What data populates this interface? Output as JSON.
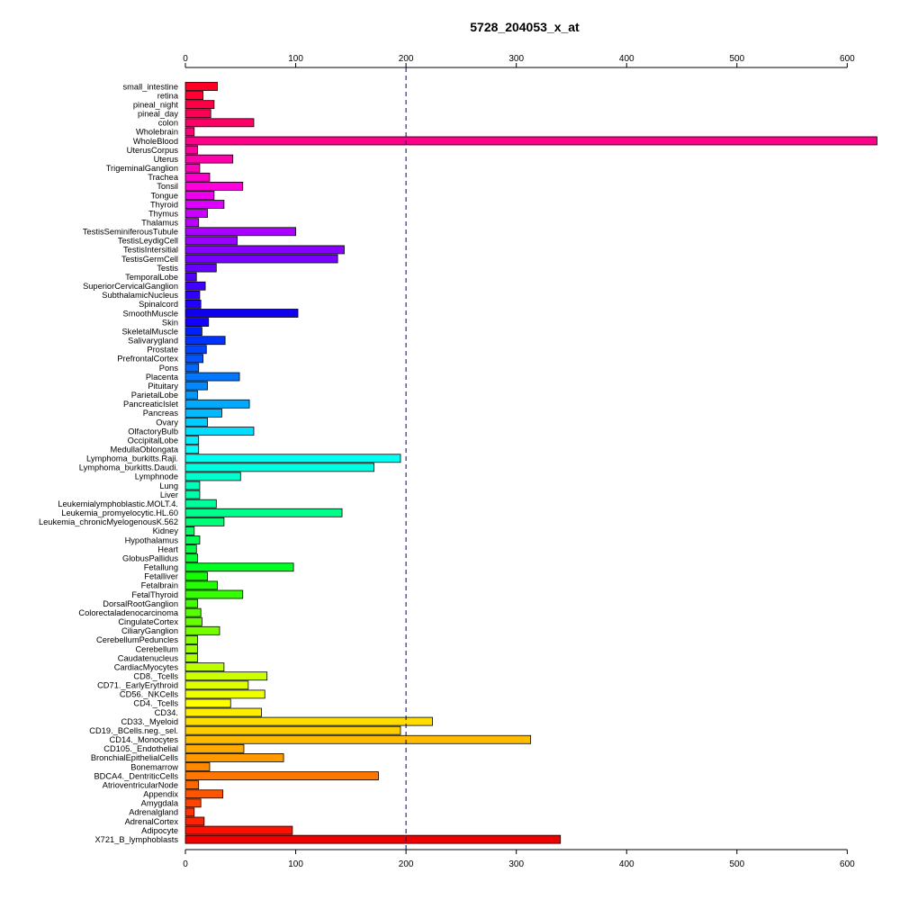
{
  "chart_data": {
    "type": "bar",
    "orientation": "horizontal",
    "title": "5728_204053_x_at",
    "xlabel": "",
    "ylabel": "",
    "xlim": [
      0,
      625
    ],
    "xticks": [
      0,
      100,
      200,
      300,
      400,
      500,
      600
    ],
    "reference_line": 200,
    "axes": "top and bottom",
    "categories": [
      "small_intestine",
      "retina",
      "pineal_night",
      "pineal_day",
      "colon",
      "Wholebrain",
      "WholeBlood",
      "UterusCorpus",
      "Uterus",
      "TrigeminalGanglion",
      "Trachea",
      "Tonsil",
      "Tongue",
      "Thyroid",
      "Thymus",
      "Thalamus",
      "TestisSeminiferousTubule",
      "TestisLeydigCell",
      "TestisIntersitial",
      "TestisGermCell",
      "Testis",
      "TemporalLobe",
      "SuperiorCervicalGanglion",
      "SubthalamicNucleus",
      "Spinalcord",
      "SmoothMuscle",
      "Skin",
      "SkeletalMuscle",
      "Salivarygland",
      "Prostate",
      "PrefrontalCortex",
      "Pons",
      "Placenta",
      "Pituitary",
      "ParietalLobe",
      "PancreaticIslet",
      "Pancreas",
      "Ovary",
      "OlfactoryBulb",
      "OccipitalLobe",
      "MedullaOblongata",
      "Lymphoma_burkitts.Raji.",
      "Lymphoma_burkitts.Daudi.",
      "Lymphnode",
      "Lung",
      "Liver",
      "Leukemialymphoblastic.MOLT.4.",
      "Leukemia_promyelocytic.HL.60",
      "Leukemia_chronicMyelogenousK.562",
      "Kidney",
      "Hypothalamus",
      "Heart",
      "GlobusPallidus",
      "Fetallung",
      "Fetalliver",
      "Fetalbrain",
      "FetalThyroid",
      "DorsalRootGanglion",
      "Colorectaladenocarcinoma",
      "CingulateCortex",
      "CiliaryGanglion",
      "CerebellumPeduncles",
      "Cerebellum",
      "Caudatenucleus",
      "CardiacMyocytes",
      "CD8._Tcells",
      "CD71._EarlyErythroid",
      "CD56._NKCells",
      "CD4._Tcells",
      "CD34.",
      "CD33._Myeloid",
      "CD19._BCells.neg._sel.",
      "CD14._Monocytes",
      "CD105._Endothelial",
      "BronchialEpithelialCells",
      "Bonemarrow",
      "BDCA4._DentriticCells",
      "AtrioventricularNode",
      "Appendix",
      "Amygdala",
      "Adrenalgland",
      "AdrenalCortex",
      "Adipocyte",
      "X721_B_lymphoblasts"
    ],
    "values": [
      29,
      16,
      26,
      23,
      62,
      8,
      627,
      11,
      43,
      13,
      22,
      52,
      26,
      35,
      20,
      12,
      100,
      47,
      144,
      138,
      28,
      10,
      18,
      13,
      14,
      102,
      21,
      15,
      36,
      19,
      16,
      12,
      49,
      20,
      11,
      58,
      33,
      20,
      62,
      12,
      12,
      195,
      171,
      50,
      13,
      13,
      28,
      142,
      35,
      8,
      13,
      10,
      11,
      98,
      20,
      29,
      52,
      11,
      14,
      15,
      31,
      11,
      11,
      11,
      35,
      74,
      57,
      72,
      41,
      69,
      224,
      195,
      313,
      53,
      89,
      22,
      175,
      12,
      34,
      14,
      8,
      17,
      97,
      340
    ],
    "colors": [
      "#ff0022",
      "#ff0033",
      "#ff0044",
      "#ff0055",
      "#ff0066",
      "#ff0077",
      "#ff0088",
      "#ff0099",
      "#ff00aa",
      "#ff00bb",
      "#ff00cc",
      "#ff00dd",
      "#ee00ee",
      "#dd00ff",
      "#cc00ff",
      "#bb00ff",
      "#aa00ff",
      "#9900ff",
      "#8800ff",
      "#7700ff",
      "#6600ff",
      "#5500ff",
      "#4400ff",
      "#3300ff",
      "#2200ff",
      "#0f00ee",
      "#1100ff",
      "#0022ff",
      "#0033ff",
      "#0044ff",
      "#0055ff",
      "#0066ff",
      "#0077ff",
      "#0088ff",
      "#0099ff",
      "#00aaff",
      "#00bbff",
      "#00ccff",
      "#00ddff",
      "#00eeff",
      "#00ffff",
      "#00fff0",
      "#00ffe0",
      "#00ffcc",
      "#00ffbb",
      "#00ffaa",
      "#00ff99",
      "#00ff88",
      "#00ff77",
      "#00ff66",
      "#00ff55",
      "#00ff44",
      "#00ff33",
      "#00ff22",
      "#11ff00",
      "#22ff00",
      "#33ff00",
      "#44ff00",
      "#55ff00",
      "#66ff00",
      "#77ff00",
      "#88ff00",
      "#99ff00",
      "#aaff00",
      "#bbff00",
      "#ccff00",
      "#ddff00",
      "#eeff00",
      "#ffff00",
      "#ffee00",
      "#ffdd00",
      "#ffcc00",
      "#ffbb00",
      "#ffaa00",
      "#ff9900",
      "#ff8800",
      "#ff7700",
      "#ff6600",
      "#ff5500",
      "#ff4400",
      "#ff3300",
      "#ff2200",
      "#ff1100",
      "#ee0000"
    ]
  }
}
